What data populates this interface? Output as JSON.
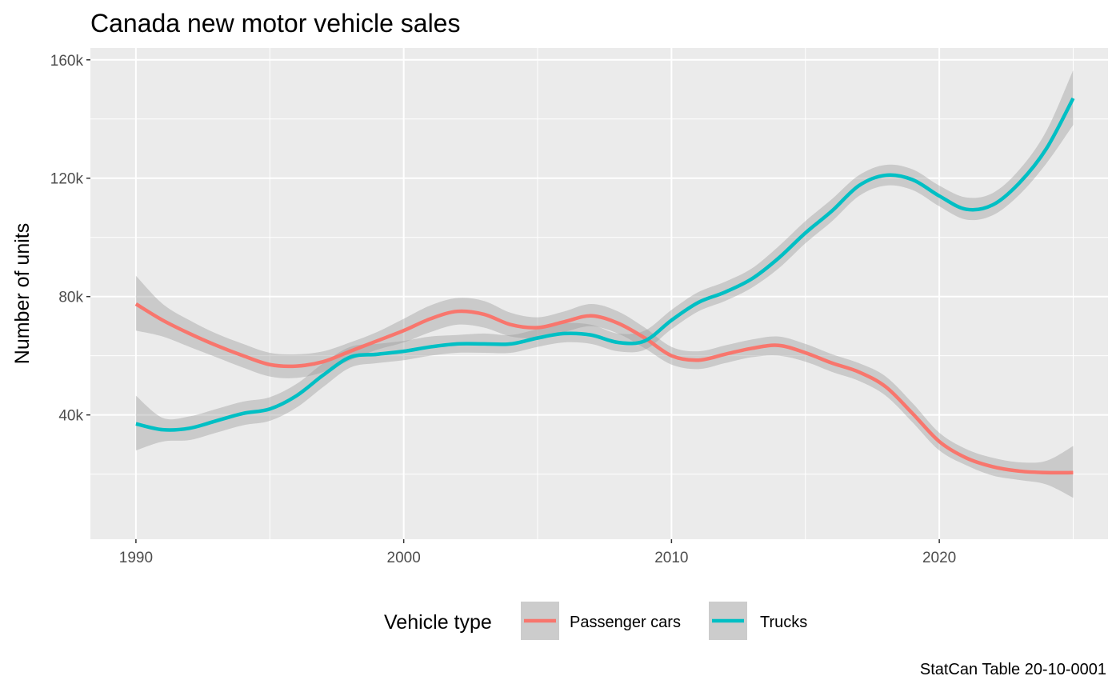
{
  "chart_data": {
    "type": "line",
    "title": "Canada new motor vehicle sales",
    "xlabel": "",
    "ylabel": "Number of units",
    "caption": "StatCan Table 20-10-0001",
    "xlim": [
      1988.3,
      2026.3
    ],
    "ylim": [
      -2000,
      164000
    ],
    "x_ticks": [
      1990,
      2000,
      2010,
      2020
    ],
    "x_tick_labels": [
      "1990",
      "2000",
      "2010",
      "2020"
    ],
    "y_ticks": [
      40000,
      80000,
      120000,
      160000
    ],
    "y_tick_labels": [
      "40k",
      "80k",
      "120k",
      "160k"
    ],
    "grid": true,
    "legend": {
      "title": "Vehicle type",
      "position": "bottom"
    },
    "confidence_band_color": "#999999",
    "series": [
      {
        "name": "Passenger cars",
        "color": "#F8766D",
        "x": [
          1990,
          1991,
          1992,
          1993,
          1994,
          1995,
          1996,
          1997,
          1998,
          1999,
          2000,
          2001,
          2002,
          2003,
          2004,
          2005,
          2006,
          2007,
          2008,
          2009,
          2010,
          2011,
          2012,
          2013,
          2014,
          2015,
          2016,
          2017,
          2018,
          2019,
          2020,
          2021,
          2022,
          2023,
          2024,
          2025
        ],
        "y": [
          77500,
          72000,
          67500,
          63500,
          60000,
          57000,
          56500,
          58000,
          61500,
          65000,
          68500,
          72500,
          75000,
          74000,
          70500,
          69500,
          71500,
          73500,
          71000,
          66000,
          60000,
          58500,
          60500,
          62500,
          63500,
          61000,
          57500,
          54500,
          49500,
          40500,
          31000,
          25500,
          22500,
          21000,
          20500,
          20500
        ],
        "lower": [
          68500,
          66500,
          63000,
          59500,
          56000,
          53000,
          52500,
          54500,
          58500,
          62000,
          64500,
          68000,
          70500,
          69500,
          66500,
          66000,
          68000,
          70000,
          67500,
          62500,
          57000,
          55500,
          57500,
          59500,
          60000,
          58000,
          54500,
          51500,
          46500,
          37500,
          28000,
          23000,
          19500,
          18000,
          16500,
          12000
        ],
        "upper": [
          87000,
          77500,
          72000,
          67500,
          64000,
          61000,
          60500,
          61500,
          64500,
          68000,
          72500,
          77000,
          79500,
          78500,
          74500,
          73000,
          75000,
          77500,
          75000,
          69500,
          63000,
          61500,
          63500,
          65500,
          66500,
          64000,
          60500,
          57500,
          53000,
          44000,
          34000,
          28500,
          25500,
          24000,
          24500,
          29500
        ]
      },
      {
        "name": "Trucks",
        "color": "#00BFC4",
        "x": [
          1990,
          1991,
          1992,
          1993,
          1994,
          1995,
          1996,
          1997,
          1998,
          1999,
          2000,
          2001,
          2002,
          2003,
          2004,
          2005,
          2006,
          2007,
          2008,
          2009,
          2010,
          2011,
          2012,
          2013,
          2014,
          2015,
          2016,
          2017,
          2018,
          2019,
          2020,
          2021,
          2022,
          2023,
          2024,
          2025
        ],
        "y": [
          37000,
          35000,
          35500,
          38000,
          40500,
          42000,
          46500,
          53500,
          59500,
          60500,
          61500,
          63000,
          64000,
          64000,
          64000,
          66000,
          67500,
          67000,
          64500,
          65000,
          72000,
          78000,
          81500,
          86000,
          93000,
          101500,
          109000,
          117500,
          121000,
          119500,
          114000,
          109500,
          111000,
          118500,
          130000,
          147000
        ],
        "lower": [
          28000,
          31000,
          31500,
          34000,
          36500,
          38000,
          42500,
          49500,
          56000,
          57500,
          58500,
          60000,
          61000,
          61000,
          61000,
          63000,
          64500,
          64000,
          61500,
          62000,
          69000,
          75000,
          78500,
          83000,
          89500,
          98000,
          105500,
          114000,
          117500,
          116000,
          110500,
          106000,
          107500,
          114500,
          125000,
          138000
        ],
        "upper": [
          46500,
          39000,
          39500,
          42000,
          44500,
          46000,
          50500,
          57500,
          63000,
          64000,
          65000,
          66500,
          67000,
          67500,
          67000,
          69000,
          71000,
          70500,
          67500,
          68500,
          75500,
          81500,
          85000,
          89500,
          97000,
          105500,
          113000,
          121000,
          124500,
          123000,
          117500,
          113500,
          115000,
          123000,
          136000,
          156500
        ]
      }
    ]
  }
}
